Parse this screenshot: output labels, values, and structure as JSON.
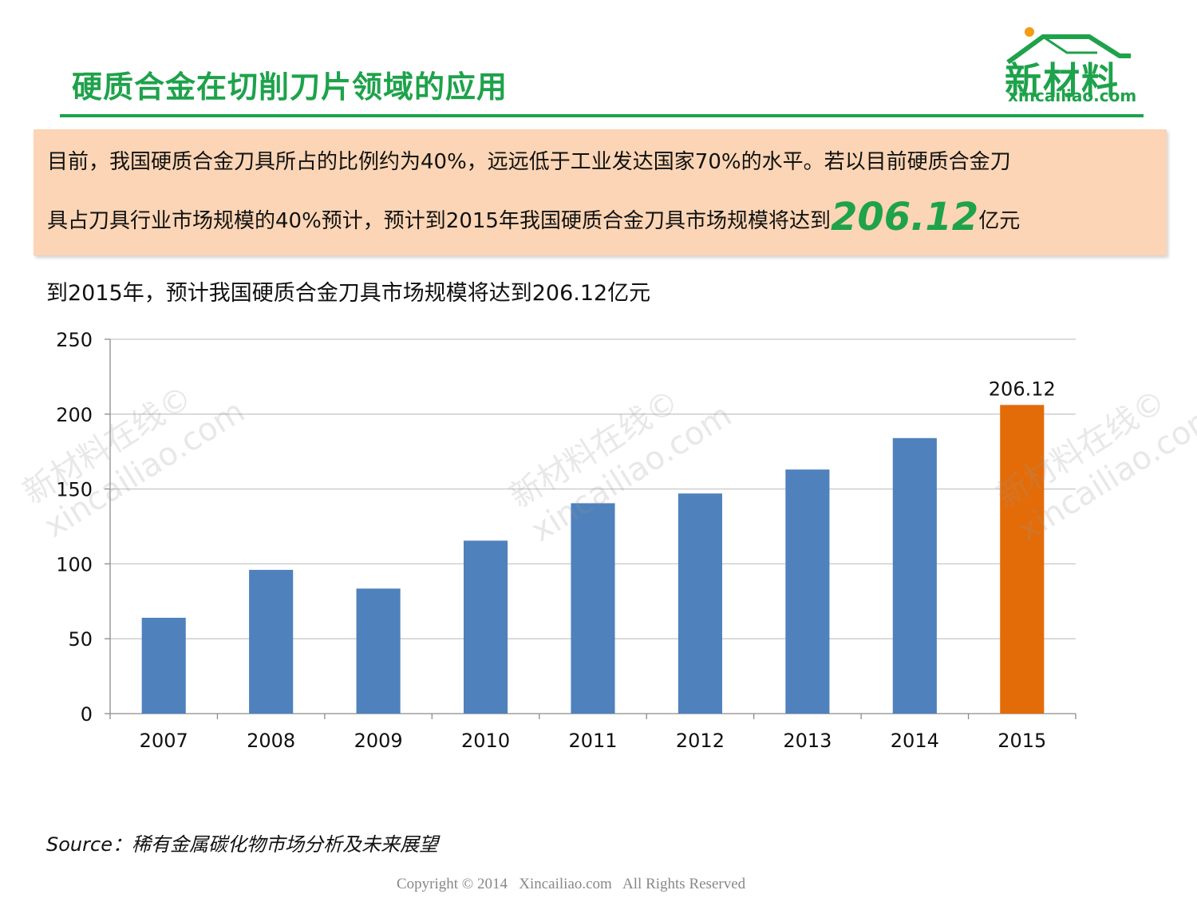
{
  "slide": {
    "title": "硬质合金在切削刀片领域的应用"
  },
  "logo": {
    "main_text": "新材料",
    "sub_text": "xincailiao.com"
  },
  "summary": {
    "line1": "目前，我国硬质合金刀具所占的比例约为40%，远远低于工业发达国家70%的水平。若以目前硬质合金刀",
    "line2_prefix": "具占刀具行业市场规模的40%预计，预计到2015年我国硬质合金刀具市场规模将达到",
    "highlight_value": "206.12",
    "line2_suffix": "亿元"
  },
  "chart_caption": "到2015年，预计我国硬质合金刀具市场规模将达到206.12亿元",
  "watermark": {
    "line1": "新材料在线©",
    "line2": "xincailiao.com"
  },
  "chart_data": {
    "type": "bar",
    "categories": [
      "2007",
      "2008",
      "2009",
      "2010",
      "2011",
      "2012",
      "2013",
      "2014",
      "2015"
    ],
    "values": [
      64,
      96,
      83.5,
      115.5,
      140.5,
      147,
      163,
      184,
      206.12
    ],
    "bar_colors": [
      "#4f81bd",
      "#4f81bd",
      "#4f81bd",
      "#4f81bd",
      "#4f81bd",
      "#4f81bd",
      "#4f81bd",
      "#4f81bd",
      "#e36c09"
    ],
    "data_labels": [
      {
        "category": "2015",
        "text": "206.12"
      }
    ],
    "y_ticks": [
      "0",
      "50",
      "100",
      "150",
      "200",
      "250"
    ],
    "ylim": [
      0,
      250
    ],
    "grid": true,
    "title": "",
    "xlabel": "",
    "ylabel": ""
  },
  "source": "Source：稀有金属碳化物市场分析及未来展望",
  "copyright": "Copyright © 2014   Xincailiao.com   All Rights Reserved",
  "colors": {
    "brand_green": "#1ea24b",
    "summary_background": "#fbd5b5",
    "bar_default": "#4f81bd",
    "bar_highlight": "#e36c09",
    "logo_dot": "#f39c12"
  }
}
